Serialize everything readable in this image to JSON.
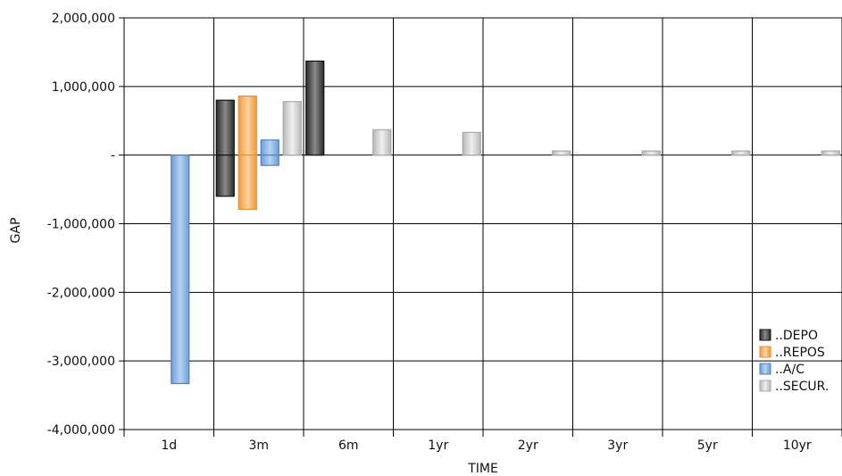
{
  "chart_data": {
    "type": "bar",
    "xlabel": "TIME",
    "ylabel": "GAP",
    "categories": [
      "1d",
      "3m",
      "6m",
      "1yr",
      "2yr",
      "3yr",
      "5yr",
      "10yr"
    ],
    "ylim": [
      -4000000,
      2000000
    ],
    "yticks": [
      2000000,
      1000000,
      0,
      -1000000,
      -2000000,
      -3000000,
      -4000000
    ],
    "ytick_labels": [
      "2,000,000",
      "1,000,000",
      "-",
      "-1,000,000",
      "-2,000,000",
      "-3,000,000",
      "-4,000,000"
    ],
    "grid": true,
    "legend_position": "right",
    "series": [
      {
        "name": "..DEPO",
        "color": "#555555",
        "stroke": "#111111",
        "values": [
          0,
          [
            800000,
            -600000
          ],
          1370000,
          0,
          0,
          0,
          0,
          0
        ]
      },
      {
        "name": "..REPOS",
        "color": "#f8b870",
        "stroke": "#e8902c",
        "values": [
          0,
          [
            860000,
            -790000
          ],
          0,
          0,
          0,
          0,
          0,
          0
        ]
      },
      {
        "name": "..A/C",
        "color": "#8eb4e6",
        "stroke": "#4f81bd",
        "values": [
          -3330000,
          [
            220000,
            -150000
          ],
          0,
          0,
          0,
          0,
          0,
          0
        ]
      },
      {
        "name": "..SECUR.",
        "color": "#d0d0d0",
        "stroke": "#a8a8a8",
        "values": [
          0,
          780000,
          370000,
          330000,
          60000,
          60000,
          60000,
          60000
        ]
      }
    ]
  }
}
